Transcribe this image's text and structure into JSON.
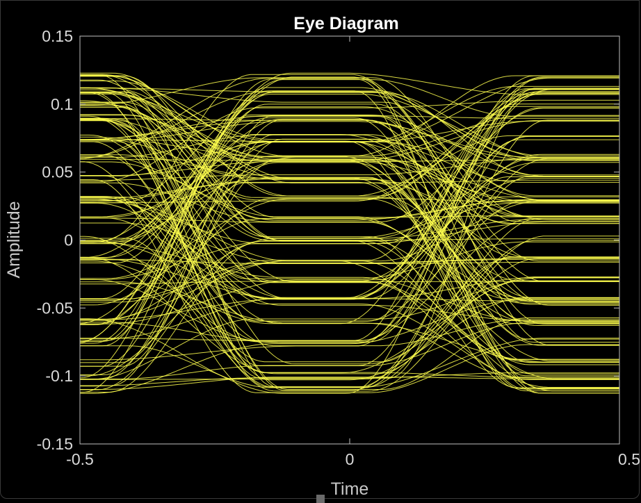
{
  "chart_data": {
    "type": "line",
    "title": "Eye Diagram",
    "xlabel": "Time",
    "ylabel": "Amplitude",
    "xlim": [
      -0.5,
      0.5
    ],
    "ylim": [
      -0.15,
      0.15
    ],
    "x_ticks": [
      -0.5,
      0,
      0.5
    ],
    "y_ticks": [
      -0.15,
      -0.1,
      -0.05,
      0,
      0.05,
      0.1,
      0.15
    ],
    "x_tick_labels": [
      "-0.5",
      "0",
      "0.5"
    ],
    "y_tick_labels": [
      "-0.15",
      "-0.1",
      "-0.05",
      "0",
      "0.05",
      "0.1",
      "0.15"
    ],
    "grid": false,
    "background_color": "#000000",
    "axis_color": "#bfbfbf",
    "trace_color": "#ffff4d",
    "levels": [
      -0.11,
      -0.1,
      -0.09,
      -0.075,
      -0.06,
      -0.045,
      -0.03,
      -0.015,
      0,
      0.015,
      0.03,
      0.045,
      0.06,
      0.075,
      0.09,
      0.1,
      0.11,
      0.12
    ],
    "crossing_times": [
      -0.3,
      0.18
    ],
    "trace_count": 150
  }
}
